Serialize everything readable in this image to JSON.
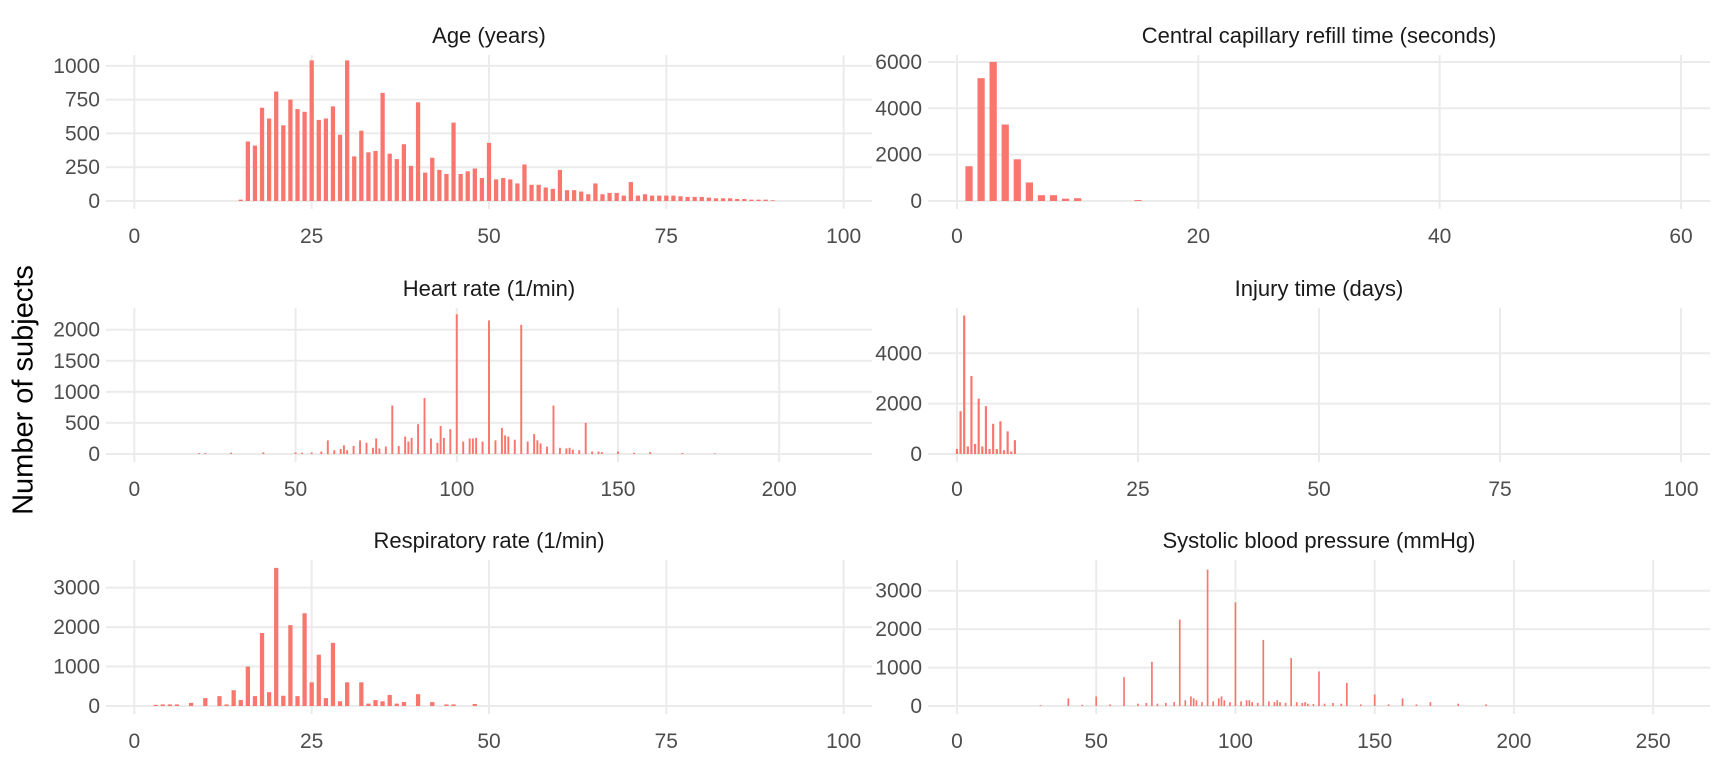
{
  "figure": {
    "ylabel": "Number of subjects",
    "bar_color": "#F8766D",
    "grid_color": "#EBEBEB"
  },
  "chart_data": [
    {
      "type": "bar",
      "title": "Age (years)",
      "xlim": [
        0,
        100
      ],
      "xticks": [
        0,
        25,
        50,
        75,
        100
      ],
      "ylim": [
        0,
        1080
      ],
      "yticks": [
        0,
        250,
        500,
        750,
        1000
      ],
      "x": [
        15,
        16,
        17,
        18,
        19,
        20,
        21,
        22,
        23,
        24,
        25,
        26,
        27,
        28,
        29,
        30,
        31,
        32,
        33,
        34,
        35,
        36,
        37,
        38,
        39,
        40,
        41,
        42,
        43,
        44,
        45,
        46,
        47,
        48,
        49,
        50,
        51,
        52,
        53,
        54,
        55,
        56,
        57,
        58,
        59,
        60,
        61,
        62,
        63,
        64,
        65,
        66,
        67,
        68,
        69,
        70,
        71,
        72,
        73,
        74,
        75,
        76,
        77,
        78,
        79,
        80,
        81,
        82,
        83,
        84,
        85,
        86,
        87,
        88,
        89,
        90
      ],
      "values": [
        10,
        440,
        410,
        690,
        610,
        810,
        560,
        750,
        680,
        660,
        1040,
        600,
        610,
        700,
        490,
        1040,
        330,
        520,
        360,
        370,
        800,
        350,
        310,
        420,
        260,
        730,
        210,
        320,
        230,
        200,
        580,
        200,
        220,
        240,
        170,
        430,
        160,
        170,
        160,
        130,
        270,
        120,
        120,
        100,
        90,
        230,
        80,
        80,
        70,
        50,
        130,
        50,
        60,
        60,
        40,
        140,
        40,
        50,
        40,
        40,
        40,
        40,
        35,
        30,
        30,
        30,
        25,
        20,
        20,
        20,
        15,
        15,
        10,
        10,
        10,
        5
      ]
    },
    {
      "type": "bar",
      "title": "Central capillary refill time (seconds)",
      "xlim": [
        0,
        60
      ],
      "xticks": [
        0,
        20,
        40,
        60
      ],
      "ylim": [
        0,
        6300
      ],
      "yticks": [
        0,
        2000,
        4000,
        6000
      ],
      "x": [
        1,
        2,
        3,
        4,
        5,
        6,
        7,
        8,
        9,
        10,
        15
      ],
      "values": [
        1500,
        5300,
        6000,
        3300,
        1800,
        800,
        250,
        250,
        100,
        120,
        40
      ]
    },
    {
      "type": "bar",
      "title": "Heart rate (1/min)",
      "xlim": [
        0,
        220
      ],
      "xticks": [
        0,
        50,
        100,
        150,
        200
      ],
      "ylim": [
        0,
        2350
      ],
      "yticks": [
        0,
        500,
        1000,
        1500,
        2000
      ],
      "x": [
        20,
        22,
        30,
        40,
        50,
        52,
        55,
        58,
        60,
        62,
        64,
        65,
        66,
        68,
        70,
        72,
        74,
        75,
        76,
        78,
        80,
        82,
        84,
        85,
        86,
        88,
        90,
        92,
        94,
        95,
        96,
        98,
        100,
        102,
        104,
        105,
        106,
        108,
        110,
        112,
        114,
        115,
        116,
        118,
        120,
        122,
        124,
        125,
        126,
        128,
        130,
        132,
        134,
        135,
        136,
        138,
        140,
        142,
        144,
        145,
        150,
        155,
        160,
        170,
        180
      ],
      "values": [
        15,
        15,
        20,
        25,
        25,
        20,
        25,
        40,
        220,
        60,
        80,
        140,
        60,
        130,
        220,
        180,
        100,
        250,
        90,
        120,
        780,
        130,
        280,
        200,
        260,
        480,
        900,
        250,
        180,
        450,
        260,
        400,
        2250,
        200,
        250,
        250,
        260,
        200,
        2150,
        220,
        420,
        300,
        280,
        230,
        2080,
        200,
        320,
        220,
        170,
        120,
        780,
        100,
        90,
        100,
        70,
        60,
        500,
        40,
        40,
        30,
        40,
        20,
        30,
        15,
        10
      ]
    },
    {
      "type": "bar",
      "title": "Injury time (days)",
      "xlim": [
        0,
        100
      ],
      "xticks": [
        0,
        25,
        50,
        75,
        100
      ],
      "ylim": [
        0,
        5800
      ],
      "yticks": [
        0,
        2000,
        4000
      ],
      "x": [
        0,
        0.5,
        1,
        1.5,
        2,
        2.5,
        3,
        3.5,
        4,
        4.5,
        5,
        5.5,
        6,
        6.5,
        7,
        7.5,
        8
      ],
      "values": [
        200,
        1700,
        5500,
        300,
        3100,
        400,
        2200,
        300,
        1900,
        200,
        1200,
        200,
        1300,
        150,
        900,
        100,
        550
      ]
    },
    {
      "type": "bar",
      "title": "Respiratory rate (1/min)",
      "xlim": [
        0,
        100
      ],
      "xticks": [
        0,
        25,
        50,
        75,
        100
      ],
      "ylim": [
        0,
        3700
      ],
      "yticks": [
        0,
        1000,
        2000,
        3000
      ],
      "x": [
        3,
        4,
        5,
        6,
        8,
        10,
        12,
        13,
        14,
        15,
        16,
        17,
        18,
        19,
        20,
        21,
        22,
        23,
        24,
        25,
        26,
        27,
        28,
        29,
        30,
        32,
        33,
        34,
        35,
        36,
        37,
        38,
        40,
        42,
        44,
        45,
        48
      ],
      "values": [
        30,
        40,
        40,
        40,
        80,
        200,
        250,
        40,
        400,
        150,
        1000,
        250,
        1850,
        350,
        3500,
        260,
        2050,
        250,
        2350,
        600,
        1300,
        200,
        1600,
        120,
        600,
        600,
        60,
        150,
        120,
        280,
        60,
        100,
        300,
        100,
        40,
        40,
        50
      ]
    },
    {
      "type": "bar",
      "title": "Systolic blood pressure (mmHg)",
      "xlim": [
        0,
        260
      ],
      "xticks": [
        0,
        50,
        100,
        150,
        200,
        250
      ],
      "ylim": [
        0,
        3800
      ],
      "yticks": [
        0,
        1000,
        2000,
        3000
      ],
      "x": [
        30,
        40,
        45,
        50,
        55,
        60,
        65,
        68,
        70,
        72,
        75,
        78,
        80,
        82,
        84,
        85,
        86,
        88,
        90,
        92,
        94,
        95,
        96,
        98,
        100,
        102,
        104,
        105,
        106,
        108,
        110,
        112,
        114,
        115,
        116,
        118,
        120,
        122,
        124,
        125,
        126,
        128,
        130,
        132,
        135,
        138,
        140,
        145,
        150,
        155,
        160,
        165,
        170,
        180,
        190
      ],
      "values": [
        20,
        200,
        30,
        250,
        40,
        750,
        60,
        80,
        1150,
        60,
        80,
        100,
        2250,
        150,
        250,
        200,
        150,
        100,
        3550,
        120,
        200,
        250,
        150,
        100,
        2700,
        120,
        150,
        150,
        100,
        80,
        1720,
        120,
        100,
        150,
        100,
        80,
        1250,
        100,
        80,
        100,
        60,
        50,
        900,
        60,
        80,
        60,
        600,
        40,
        300,
        40,
        200,
        40,
        100,
        60,
        40
      ]
    }
  ]
}
